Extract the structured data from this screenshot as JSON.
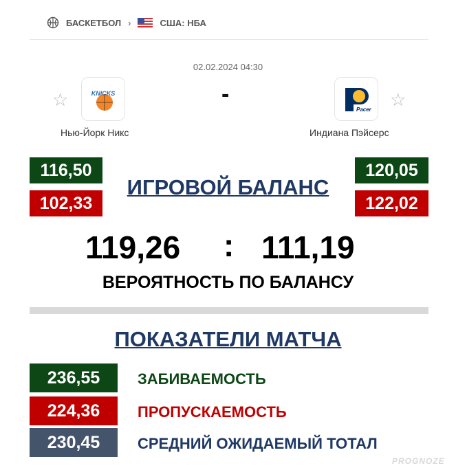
{
  "breadcrumb": {
    "sport": "БАСКЕТБОЛ",
    "league": "США: НБА",
    "sport_icon": "basketball-icon",
    "flag_icon": "us-flag-icon"
  },
  "match": {
    "datetime": "02.02.2024 04:30",
    "separator": "-",
    "home": {
      "name": "Нью-Йорк Никс",
      "logo_text": "KNICKS"
    },
    "away": {
      "name": "Индиана Пэйсерс",
      "logo_text": "Pacers"
    }
  },
  "balance": {
    "title": "ИГРОВОЙ БАЛАНС",
    "home_top": "116,50",
    "home_bottom": "102,33",
    "away_top": "120,05",
    "away_bottom": "122,02",
    "home_score": "119,26",
    "colon": ":",
    "away_score": "111,19",
    "subtitle": "ВЕРОЯТНОСТЬ ПО БАЛАНСУ"
  },
  "stats": {
    "title": "ПОКАЗАТЕЛИ МАТЧА",
    "rows": [
      {
        "value": "236,55",
        "label": "ЗАБИВАЕМОСТЬ",
        "color": "#0d4715"
      },
      {
        "value": "224,36",
        "label": "ПРОПУСКАЕМОСТЬ",
        "color": "#c00000"
      },
      {
        "value": "230,45",
        "label": "СРЕДНИЙ ОЖИДАЕМЫЙ ТОТАЛ",
        "color": "#1f3864"
      }
    ]
  },
  "watermark": "PROGNOZE",
  "colors": {
    "green": "#0d4715",
    "red": "#c00000",
    "slate": "#44546a",
    "title": "#1f3864"
  }
}
